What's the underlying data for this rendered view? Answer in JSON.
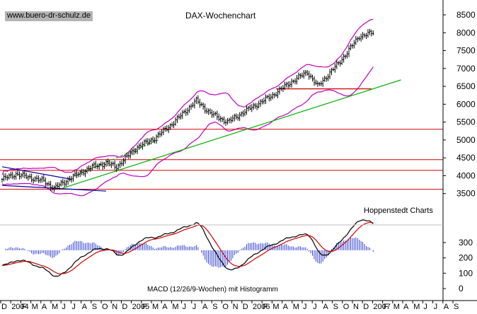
{
  "header": {
    "source_label": "www.buero-dr-schulz.de",
    "title": "DAX-Wochenchart",
    "provider": "Hoppenstedt Charts"
  },
  "chart_data": [
    {
      "type": "candlestick",
      "id": "price",
      "title": "DAX-Wochenchart",
      "y_ticks": [
        3500,
        4000,
        4500,
        5000,
        5500,
        6000,
        6500,
        7000,
        7500,
        8000,
        8500
      ],
      "ylim": [
        3000,
        8800
      ],
      "grid": false,
      "horizontal_levels": [
        3620,
        4150,
        4450,
        5300
      ],
      "dashed_level": {
        "value": 6430,
        "start_index": 158,
        "end_index": 213
      },
      "series": [
        {
          "name": "",
          "type": "ohlc-weekly",
          "start": 3895,
          "anchors": [
            [
              0,
              3900
            ],
            [
              8,
              4050
            ],
            [
              16,
              3950
            ],
            [
              24,
              3850
            ],
            [
              30,
              3650
            ],
            [
              40,
              3950
            ],
            [
              52,
              4250
            ],
            [
              60,
              4350
            ],
            [
              66,
              4250
            ],
            [
              78,
              4800
            ],
            [
              88,
              5050
            ],
            [
              98,
              5450
            ],
            [
              112,
              6100
            ],
            [
              120,
              5750
            ],
            [
              130,
              5500
            ],
            [
              140,
              5800
            ],
            [
              156,
              6250
            ],
            [
              166,
              6600
            ],
            [
              176,
              6900
            ],
            [
              182,
              6500
            ],
            [
              195,
              7200
            ],
            [
              206,
              7900
            ],
            [
              214,
              8000
            ]
          ]
        }
      ],
      "trendlines": [
        {
          "name": "",
          "color": "#0000a0",
          "from": [
            0,
            4250
          ],
          "to": [
            40,
            3900
          ]
        },
        {
          "name": "",
          "color": "#0000a0",
          "from": [
            0,
            3730
          ],
          "to": [
            60,
            3570
          ]
        },
        {
          "name": "",
          "color": "#00b000",
          "from": [
            34,
            3640
          ],
          "to": [
            230,
            6680
          ]
        },
        {
          "name": "",
          "color": "#00b000",
          "dashed": true,
          "from": [
            42,
            4000
          ],
          "to": [
            90,
            5000
          ]
        }
      ],
      "x_labels": [
        "D",
        "2004",
        "F",
        "M",
        "A",
        "M",
        "J",
        "J",
        "A",
        "S",
        "O",
        "N",
        "D",
        "2005",
        "F",
        "M",
        "A",
        "M",
        "J",
        "J",
        "A",
        "S",
        "O",
        "N",
        "D",
        "2006",
        "F",
        "M",
        "A",
        "M",
        "J",
        "J",
        "A",
        "S",
        "O",
        "N",
        "D",
        "2007",
        "F",
        "M",
        "A",
        "M",
        "J",
        "J",
        "A",
        "S"
      ],
      "year_labels": [
        "2004",
        "2005",
        "2006",
        "2007"
      ]
    },
    {
      "type": "macd",
      "id": "macd",
      "title": "MACD (12/26/9-Wochen) mit Histogramm",
      "y_ticks": [
        0,
        100,
        200,
        300
      ],
      "ylim": [
        -50,
        360
      ]
    }
  ],
  "colors": {
    "price_bars": "#000000",
    "bollinger": "#c000c0",
    "trend_blue": "#0000a0",
    "trend_green": "#00b000",
    "levels": "#d00000",
    "macd_line": "#000000",
    "signal_line": "#d00000",
    "histogram": "#3040d0"
  }
}
